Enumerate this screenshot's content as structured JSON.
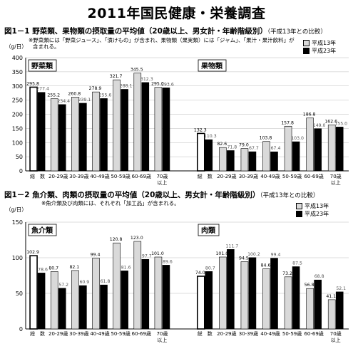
{
  "page_title": "2011年国民健康・栄養調査",
  "fig1": {
    "num": "図1－1",
    "title": "野菜類、果物類の摂取量の平均値（20歳以上、男女計・年齢階級別）",
    "comparison": "（平成13年との比較）",
    "note_line1": "※野菜類には「野菜ジュース」、「漬けもの」が含まれ、果物類（果実類）には「ジャム」、「果汁・果汁飲料」が",
    "note_line2": "含まれる。"
  },
  "fig2": {
    "num": "図1－2",
    "title": "魚介類、肉類の摂取量の平均値（20歳以上、男女計・年齢階級別）",
    "comparison": "（平成13年との比較）",
    "note_line1": "※魚介類及び肉類には、それぞれ「加工品」が含まれる。"
  },
  "legend": {
    "h13": "平成13年",
    "h23": "平成23年"
  },
  "colors": {
    "h13": "#d9d9d9",
    "h23": "#000000",
    "grid": "#bbbbbb"
  },
  "chart_data": [
    {
      "type": "bar",
      "y_unit": "（g/日）",
      "ylim": [
        0,
        400
      ],
      "yticks": [
        0,
        50,
        100,
        150,
        200,
        250,
        300,
        350,
        400
      ],
      "categories": [
        "総　数",
        "20-29歳",
        "30-39歳",
        "40-49歳",
        "50-59歳",
        "60-69歳",
        "70歳以上"
      ],
      "panels": [
        {
          "label": "野菜類",
          "series": [
            {
              "name": "平成13年",
              "values": [
                295.8,
                255.2,
                260.8,
                278.9,
                321.7,
                345.5,
                295.0
              ]
            },
            {
              "name": "平成23年",
              "values": [
                277.4,
                234.4,
                239.1,
                255.6,
                288.1,
                312.3,
                293.6
              ]
            }
          ]
        },
        {
          "label": "果物類",
          "series": [
            {
              "name": "平成13年",
              "values": [
                132.3,
                82.6,
                79.0,
                103.8,
                157.8,
                186.8,
                162.6
              ]
            },
            {
              "name": "平成23年",
              "values": [
                110.3,
                71.8,
                67.7,
                67.4,
                103.0,
                149.0,
                155.0
              ]
            }
          ]
        }
      ]
    },
    {
      "type": "bar",
      "y_unit": "（g/日）",
      "ylim": [
        0,
        150
      ],
      "yticks": [
        0,
        50,
        100,
        150
      ],
      "categories": [
        "総　数",
        "20-29歳",
        "30-39歳",
        "40-49歳",
        "50-59歳",
        "60-69歳",
        "70歳以上"
      ],
      "panels": [
        {
          "label": "魚介類",
          "series": [
            {
              "name": "平成13年",
              "values": [
                102.9,
                80.7,
                82.1,
                99.4,
                120.8,
                123.0,
                101.0
              ]
            },
            {
              "name": "平成23年",
              "values": [
                78.6,
                57.2,
                60.9,
                61.8,
                81.6,
                97.7,
                89.6
              ]
            }
          ]
        },
        {
          "label": "肉類",
          "series": [
            {
              "name": "平成13年",
              "values": [
                74.0,
                101.0,
                94.5,
                84.6,
                73.2,
                56.8,
                41.1
              ]
            },
            {
              "name": "平成23年",
              "values": [
                80.7,
                111.7,
                100.2,
                99.4,
                87.5,
                68.8,
                52.1
              ]
            }
          ]
        }
      ]
    }
  ]
}
